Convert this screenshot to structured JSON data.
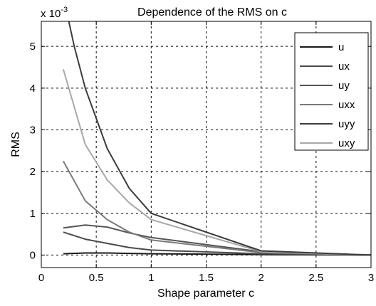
{
  "chart_data": {
    "type": "line",
    "title": "Dependence of the RMS on c",
    "xlabel": "Shape parameter c",
    "ylabel": "RMS",
    "exponent_label": "x 10",
    "exponent_power": "-3",
    "xlim": [
      0,
      3
    ],
    "ylim": [
      -0.3,
      5.6
    ],
    "xticks": [
      "0",
      "0.5",
      "1",
      "1.5",
      "2",
      "2.5",
      "3"
    ],
    "yticks": [
      "0",
      "1",
      "2",
      "3",
      "4",
      "5"
    ],
    "grid": true,
    "legend_position": "top-right",
    "series": [
      {
        "name": "u",
        "color": "#1a1a1a",
        "x": [
          0.2,
          0.4,
          0.6,
          0.8,
          1,
          2,
          3
        ],
        "y": [
          0.03,
          0.05,
          0.05,
          0.04,
          0.03,
          0.01,
          0.0
        ]
      },
      {
        "name": "ux",
        "color": "#4a4a4a",
        "x": [
          0.2,
          0.4,
          0.6,
          0.8,
          1,
          2,
          3
        ],
        "y": [
          0.55,
          0.38,
          0.28,
          0.18,
          0.12,
          0.03,
          0.0
        ]
      },
      {
        "name": "uy",
        "color": "#555555",
        "x": [
          0.2,
          0.4,
          0.6,
          0.8,
          1,
          2,
          3
        ],
        "y": [
          0.65,
          0.72,
          0.67,
          0.53,
          0.42,
          0.08,
          0.0
        ]
      },
      {
        "name": "uxx",
        "color": "#7a7a7a",
        "x": [
          0.2,
          0.4,
          0.6,
          0.8,
          1,
          2,
          3
        ],
        "y": [
          2.25,
          1.3,
          0.85,
          0.55,
          0.36,
          0.06,
          0.0
        ]
      },
      {
        "name": "uyy",
        "color": "#3c3c3c",
        "x": [
          0.2,
          0.3,
          0.4,
          0.6,
          0.8,
          1,
          2,
          3
        ],
        "y": [
          6.2,
          5.0,
          4.0,
          2.55,
          1.6,
          1.0,
          0.1,
          0.0
        ]
      },
      {
        "name": "uxy",
        "color": "#a8a8a8",
        "x": [
          0.2,
          0.4,
          0.6,
          0.8,
          1,
          2,
          3
        ],
        "y": [
          4.45,
          2.65,
          1.8,
          1.25,
          0.85,
          0.08,
          0.0
        ]
      }
    ]
  }
}
